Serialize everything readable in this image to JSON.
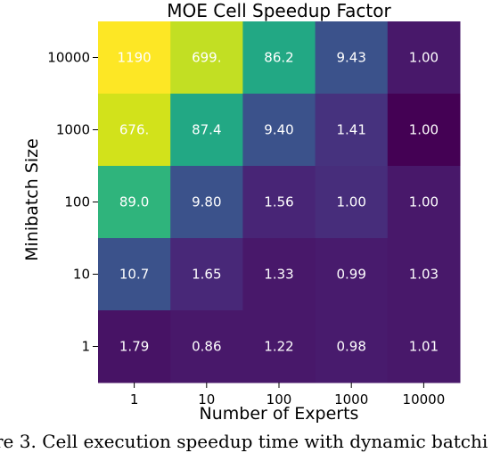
{
  "chart_data": {
    "type": "heatmap",
    "title": "MOE Cell Speedup Factor",
    "xlabel": "Number of Experts",
    "ylabel": "Minibatch Size",
    "x_categories": [
      "1",
      "10",
      "100",
      "1000",
      "10000"
    ],
    "y_categories": [
      "10000",
      "1000",
      "100",
      "10",
      "1"
    ],
    "colormap": "viridis",
    "values": [
      [
        1190,
        699,
        86.2,
        9.43,
        1.0
      ],
      [
        676,
        87.4,
        9.4,
        1.41,
        1.0
      ],
      [
        89.0,
        9.8,
        1.56,
        1.0,
        1.0
      ],
      [
        10.7,
        1.65,
        1.33,
        0.99,
        1.03
      ],
      [
        1.79,
        0.86,
        1.22,
        0.98,
        1.01
      ]
    ],
    "labels": [
      [
        "1190",
        "699.",
        "86.2",
        "9.43",
        "1.00"
      ],
      [
        "676.",
        "87.4",
        "9.40",
        "1.41",
        "1.00"
      ],
      [
        "89.0",
        "9.80",
        "1.56",
        "1.00",
        "1.00"
      ],
      [
        "10.7",
        "1.65",
        "1.33",
        "0.99",
        "1.03"
      ],
      [
        "1.79",
        "0.86",
        "1.22",
        "0.98",
        "1.01"
      ]
    ],
    "colors": [
      [
        "#fde725",
        "#c2df23",
        "#22a884",
        "#3b528b",
        "#48186a"
      ],
      [
        "#d2e21b",
        "#22a884",
        "#3b528b",
        "#46327e",
        "#440154"
      ],
      [
        "#2fb47c",
        "#3b528b",
        "#482576",
        "#472d7b",
        "#48186a"
      ],
      [
        "#3b528b",
        "#482878",
        "#48186a",
        "#481b6d",
        "#48186a"
      ],
      [
        "#471365",
        "#48186a",
        "#48186a",
        "#481b6d",
        "#48186a"
      ]
    ]
  },
  "caption": "re 3. Cell execution speedup time with dynamic batchi"
}
